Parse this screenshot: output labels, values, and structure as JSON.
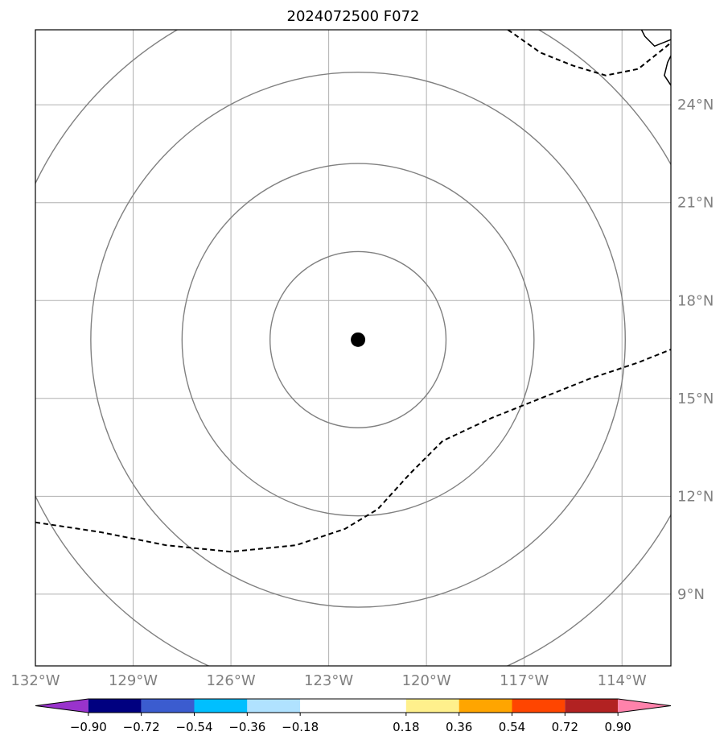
{
  "map": {
    "title": "2024072500 F072",
    "lon_range": [
      -132,
      -112.5
    ],
    "lat_range": [
      6.8,
      26.3
    ],
    "lon_labels": [
      "132°W",
      "129°W",
      "126°W",
      "123°W",
      "120°W",
      "117°W",
      "114°W"
    ],
    "lon_values": [
      -132,
      -129,
      -126,
      -123,
      -120,
      -117,
      -114
    ],
    "lat_labels": [
      "24°N",
      "21°N",
      "18°N",
      "15°N",
      "12°N",
      "9°N"
    ],
    "lat_values": [
      24,
      21,
      18,
      15,
      12,
      9
    ],
    "center": {
      "lon": -122.1,
      "lat": 16.8,
      "icon": "storm-center-dot-icon"
    },
    "range_rings_deg": [
      2.7,
      5.4,
      8.2,
      11.0
    ],
    "dashed_contour_south": [
      [
        -132,
        11.2
      ],
      [
        -130,
        10.9
      ],
      [
        -128,
        10.5
      ],
      [
        -126,
        10.3
      ],
      [
        -124,
        10.5
      ],
      [
        -122.5,
        11.0
      ],
      [
        -121.5,
        11.6
      ],
      [
        -120.5,
        12.7
      ],
      [
        -119.5,
        13.7
      ],
      [
        -118,
        14.4
      ],
      [
        -116.5,
        15.0
      ],
      [
        -115,
        15.6
      ],
      [
        -113.5,
        16.1
      ],
      [
        -112.5,
        16.5
      ]
    ],
    "dashed_contour_north": [
      [
        -117.5,
        26.3
      ],
      [
        -116.5,
        25.6
      ],
      [
        -115.5,
        25.2
      ],
      [
        -114.5,
        24.9
      ],
      [
        -113.5,
        25.1
      ],
      [
        -112.5,
        25.9
      ]
    ],
    "coastline": [
      [
        -112.5,
        26.0
      ],
      [
        -113.0,
        25.8
      ],
      [
        -113.3,
        26.1
      ],
      [
        -113.4,
        26.3
      ]
    ],
    "coastline2": [
      [
        -112.5,
        24.6
      ],
      [
        -112.7,
        24.9
      ],
      [
        -112.6,
        25.3
      ],
      [
        -112.5,
        25.5
      ]
    ],
    "colors": {
      "grid": "#b0b0b0",
      "rings": "#808080",
      "frame": "#000000",
      "contour": "#000000"
    }
  },
  "colorbar": {
    "tick_labels": [
      "−0.90",
      "−0.72",
      "−0.54",
      "−0.36",
      "−0.18",
      "0.18",
      "0.36",
      "0.54",
      "0.72",
      "0.90"
    ],
    "tick_values": [
      -0.9,
      -0.72,
      -0.54,
      -0.36,
      -0.18,
      0.18,
      0.36,
      0.54,
      0.72,
      0.9
    ],
    "range": [
      -1.08,
      1.08
    ],
    "segments": [
      {
        "from": -1.08,
        "to": -0.9,
        "color": "#9933cc"
      },
      {
        "from": -0.9,
        "to": -0.72,
        "color": "#000080"
      },
      {
        "from": -0.72,
        "to": -0.54,
        "color": "#3b5ccf"
      },
      {
        "from": -0.54,
        "to": -0.36,
        "color": "#00bfff"
      },
      {
        "from": -0.36,
        "to": -0.18,
        "color": "#b0e2ff"
      },
      {
        "from": -0.18,
        "to": 0.18,
        "color": "#ffffff"
      },
      {
        "from": 0.18,
        "to": 0.36,
        "color": "#fff08c"
      },
      {
        "from": 0.36,
        "to": 0.54,
        "color": "#ffa500"
      },
      {
        "from": 0.54,
        "to": 0.72,
        "color": "#ff4500"
      },
      {
        "from": 0.72,
        "to": 0.9,
        "color": "#b22222"
      },
      {
        "from": 0.9,
        "to": 1.08,
        "color": "#ff82ab"
      }
    ]
  }
}
